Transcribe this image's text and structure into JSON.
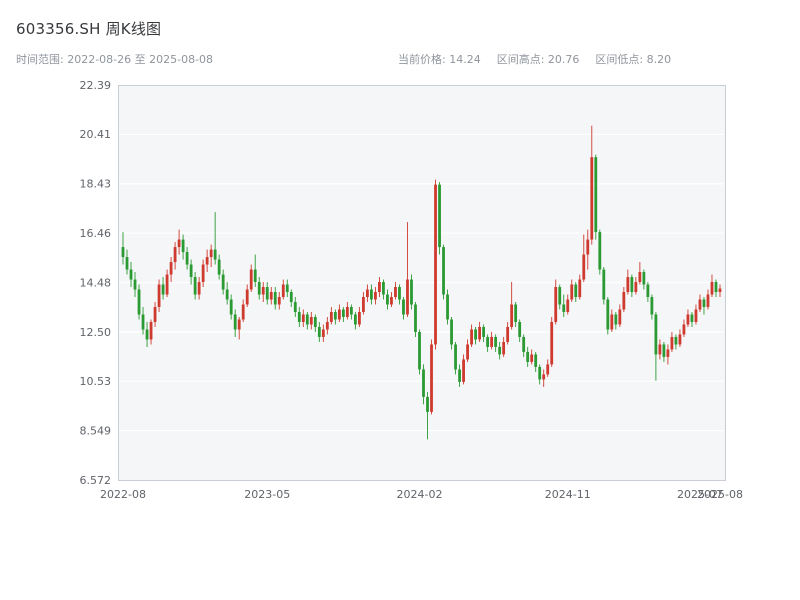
{
  "header": {
    "title": "603356.SH 周K线图",
    "time_range": "时间范围: 2022-08-26 至 2025-08-08",
    "current_price": "当前价格: 14.24",
    "range_high": "区间高点: 20.76",
    "range_low": "区间低点: 8.20"
  },
  "chart_data": {
    "type": "candlestick",
    "title": "603356.SH 周K线图",
    "symbol": "603356.SH",
    "interval": "weekly",
    "current_price": 14.24,
    "range_high": 20.76,
    "range_low": 8.2,
    "ylim": [
      6.572,
      22.39
    ],
    "grid": true,
    "legend": "none",
    "plot_bg": "#f4f6f8",
    "border_color": "#c9ced6",
    "tick_color": "#60646a",
    "up_color": "#cf3a2e",
    "down_color": "#2b9a33",
    "y_ticks": [
      {
        "label": "22.39",
        "value": 22.39
      },
      {
        "label": "20.41",
        "value": 20.41
      },
      {
        "label": "18.43",
        "value": 18.43
      },
      {
        "label": "16.46",
        "value": 16.46
      },
      {
        "label": "14.48",
        "value": 14.48
      },
      {
        "label": "12.50",
        "value": 12.5
      },
      {
        "label": "10.53",
        "value": 10.53
      },
      {
        "label": "8.549",
        "value": 8.549
      },
      {
        "label": "6.572",
        "value": 6.572
      }
    ],
    "x_ticks": [
      {
        "label": "2022-08",
        "index": 0
      },
      {
        "label": "2023-05",
        "index": 36
      },
      {
        "label": "2024-02",
        "index": 74
      },
      {
        "label": "2024-11",
        "index": 111
      },
      {
        "label": "2025-07",
        "index": 144
      },
      {
        "label": "2025-08",
        "index": 149
      }
    ],
    "fields": [
      "date",
      "open",
      "high",
      "low",
      "close"
    ],
    "candles": [
      [
        "2022-08-26",
        15.9,
        16.5,
        15.2,
        15.5
      ],
      [
        "2022-09-02",
        15.5,
        15.8,
        14.8,
        15.0
      ],
      [
        "2022-09-09",
        15.0,
        15.3,
        14.3,
        14.6
      ],
      [
        "2022-09-16",
        14.6,
        14.9,
        13.9,
        14.2
      ],
      [
        "2022-09-23",
        14.2,
        14.4,
        13.0,
        13.2
      ],
      [
        "2022-09-30",
        13.2,
        13.5,
        12.4,
        12.6
      ],
      [
        "2022-10-07",
        12.6,
        12.9,
        11.9,
        12.2
      ],
      [
        "2022-10-14",
        12.2,
        13.0,
        12.0,
        12.9
      ],
      [
        "2022-10-21",
        12.9,
        13.7,
        12.7,
        13.5
      ],
      [
        "2022-10-28",
        13.5,
        14.6,
        13.3,
        14.4
      ],
      [
        "2022-11-04",
        14.4,
        14.7,
        13.8,
        14.0
      ],
      [
        "2022-11-11",
        14.0,
        15.0,
        13.9,
        14.8
      ],
      [
        "2022-11-18",
        14.8,
        15.5,
        14.5,
        15.3
      ],
      [
        "2022-11-25",
        15.3,
        16.1,
        15.0,
        15.9
      ],
      [
        "2022-12-02",
        15.9,
        16.6,
        15.6,
        16.2
      ],
      [
        "2022-12-09",
        16.2,
        16.4,
        15.4,
        15.7
      ],
      [
        "2022-12-16",
        15.7,
        15.9,
        15.0,
        15.2
      ],
      [
        "2022-12-23",
        15.2,
        15.4,
        14.4,
        14.7
      ],
      [
        "2022-12-30",
        14.7,
        14.9,
        13.8,
        14.0
      ],
      [
        "2023-01-06",
        14.0,
        14.7,
        13.8,
        14.5
      ],
      [
        "2023-01-13",
        14.5,
        15.4,
        14.3,
        15.2
      ],
      [
        "2023-01-20",
        15.2,
        15.8,
        14.9,
        15.5
      ],
      [
        "2023-01-27",
        15.5,
        16.0,
        15.1,
        15.8
      ],
      [
        "2023-02-03",
        15.8,
        17.3,
        15.2,
        15.4
      ],
      [
        "2023-02-10",
        15.4,
        15.6,
        14.6,
        14.8
      ],
      [
        "2023-02-17",
        14.8,
        15.0,
        14.0,
        14.2
      ],
      [
        "2023-02-24",
        14.2,
        14.5,
        13.6,
        13.8
      ],
      [
        "2023-03-03",
        13.8,
        14.0,
        13.0,
        13.2
      ],
      [
        "2023-03-10",
        13.2,
        13.4,
        12.3,
        12.6
      ],
      [
        "2023-03-17",
        12.6,
        13.1,
        12.2,
        13.0
      ],
      [
        "2023-03-24",
        13.0,
        13.8,
        12.9,
        13.6
      ],
      [
        "2023-03-31",
        13.6,
        14.4,
        13.5,
        14.2
      ],
      [
        "2023-04-07",
        14.2,
        15.2,
        14.1,
        15.0
      ],
      [
        "2023-04-14",
        15.0,
        15.6,
        14.3,
        14.5
      ],
      [
        "2023-04-21",
        14.5,
        14.7,
        13.8,
        14.0
      ],
      [
        "2023-04-28",
        14.0,
        14.5,
        13.7,
        14.3
      ],
      [
        "2023-05-05",
        14.3,
        14.5,
        13.6,
        13.8
      ],
      [
        "2023-05-12",
        13.8,
        14.3,
        13.6,
        14.1
      ],
      [
        "2023-05-19",
        14.1,
        14.3,
        13.4,
        13.6
      ],
      [
        "2023-05-26",
        13.6,
        14.1,
        13.4,
        13.9
      ],
      [
        "2023-06-02",
        13.9,
        14.6,
        13.8,
        14.4
      ],
      [
        "2023-06-09",
        14.4,
        14.6,
        13.9,
        14.1
      ],
      [
        "2023-06-16",
        14.1,
        14.2,
        13.5,
        13.7
      ],
      [
        "2023-06-23",
        13.7,
        13.9,
        13.1,
        13.3
      ],
      [
        "2023-06-30",
        13.3,
        13.5,
        12.7,
        12.9
      ],
      [
        "2023-07-07",
        12.9,
        13.4,
        12.7,
        13.2
      ],
      [
        "2023-07-14",
        13.2,
        13.3,
        12.6,
        12.8
      ],
      [
        "2023-07-21",
        12.8,
        13.3,
        12.6,
        13.1
      ],
      [
        "2023-07-28",
        13.1,
        13.2,
        12.5,
        12.7
      ],
      [
        "2023-08-04",
        12.7,
        12.9,
        12.1,
        12.3
      ],
      [
        "2023-08-11",
        12.3,
        12.8,
        12.1,
        12.6
      ],
      [
        "2023-08-18",
        12.6,
        13.1,
        12.4,
        12.9
      ],
      [
        "2023-08-25",
        12.9,
        13.5,
        12.8,
        13.3
      ],
      [
        "2023-09-01",
        13.3,
        13.4,
        12.8,
        13.0
      ],
      [
        "2023-09-08",
        13.0,
        13.6,
        12.9,
        13.4
      ],
      [
        "2023-09-15",
        13.4,
        13.5,
        12.9,
        13.1
      ],
      [
        "2023-09-22",
        13.1,
        13.7,
        13.0,
        13.5
      ],
      [
        "2023-09-29",
        13.5,
        13.6,
        13.0,
        13.2
      ],
      [
        "2023-10-13",
        13.2,
        13.3,
        12.6,
        12.8
      ],
      [
        "2023-10-20",
        12.8,
        13.5,
        12.7,
        13.3
      ],
      [
        "2023-10-27",
        13.3,
        14.1,
        13.2,
        13.9
      ],
      [
        "2023-11-03",
        13.9,
        14.4,
        13.7,
        14.2
      ],
      [
        "2023-11-10",
        14.2,
        14.4,
        13.6,
        13.8
      ],
      [
        "2023-11-17",
        13.8,
        14.3,
        13.6,
        14.1
      ],
      [
        "2023-11-24",
        14.1,
        14.7,
        13.9,
        14.5
      ],
      [
        "2023-12-01",
        14.5,
        14.6,
        13.8,
        14.0
      ],
      [
        "2023-12-08",
        14.0,
        14.2,
        13.4,
        13.6
      ],
      [
        "2023-12-15",
        13.6,
        14.1,
        13.5,
        13.9
      ],
      [
        "2023-12-22",
        13.9,
        14.5,
        13.8,
        14.3
      ],
      [
        "2023-12-29",
        14.3,
        14.4,
        13.6,
        13.8
      ],
      [
        "2024-01-05",
        13.8,
        13.9,
        13.0,
        13.2
      ],
      [
        "2024-01-12",
        13.2,
        16.9,
        13.1,
        14.6
      ],
      [
        "2024-01-19",
        14.6,
        14.8,
        13.4,
        13.6
      ],
      [
        "2024-01-26",
        13.6,
        13.7,
        12.3,
        12.5
      ],
      [
        "2024-02-02",
        12.5,
        12.6,
        10.8,
        11.0
      ],
      [
        "2024-02-08",
        11.0,
        11.2,
        9.6,
        9.9
      ],
      [
        "2024-02-23",
        9.9,
        10.1,
        8.2,
        9.3
      ],
      [
        "2024-03-01",
        9.3,
        12.2,
        9.2,
        12.0
      ],
      [
        "2024-03-08",
        12.0,
        18.6,
        11.8,
        18.4
      ],
      [
        "2024-03-15",
        18.4,
        18.5,
        15.6,
        15.9
      ],
      [
        "2024-03-22",
        15.9,
        16.0,
        13.8,
        14.0
      ],
      [
        "2024-03-29",
        14.0,
        14.2,
        12.8,
        13.0
      ],
      [
        "2024-04-05",
        13.0,
        13.1,
        11.8,
        12.0
      ],
      [
        "2024-04-12",
        12.0,
        12.1,
        10.8,
        11.0
      ],
      [
        "2024-04-19",
        11.0,
        11.2,
        10.3,
        10.5
      ],
      [
        "2024-04-26",
        10.5,
        11.6,
        10.4,
        11.4
      ],
      [
        "2024-05-03",
        11.4,
        12.2,
        11.3,
        12.0
      ],
      [
        "2024-05-10",
        12.0,
        12.8,
        11.9,
        12.6
      ],
      [
        "2024-05-17",
        12.6,
        12.7,
        12.0,
        12.2
      ],
      [
        "2024-05-24",
        12.2,
        12.9,
        12.1,
        12.7
      ],
      [
        "2024-05-31",
        12.7,
        12.8,
        12.1,
        12.3
      ],
      [
        "2024-06-07",
        12.3,
        12.4,
        11.7,
        11.9
      ],
      [
        "2024-06-14",
        11.9,
        12.5,
        11.8,
        12.3
      ],
      [
        "2024-06-21",
        12.3,
        12.4,
        11.7,
        11.9
      ],
      [
        "2024-06-28",
        11.9,
        12.1,
        11.4,
        11.6
      ],
      [
        "2024-07-05",
        11.6,
        12.3,
        11.5,
        12.1
      ],
      [
        "2024-07-12",
        12.1,
        12.9,
        12.0,
        12.7
      ],
      [
        "2024-07-19",
        12.7,
        14.5,
        12.6,
        13.6
      ],
      [
        "2024-07-26",
        13.6,
        13.7,
        12.7,
        12.9
      ],
      [
        "2024-08-02",
        12.9,
        13.0,
        12.1,
        12.3
      ],
      [
        "2024-08-09",
        12.3,
        12.4,
        11.5,
        11.7
      ],
      [
        "2024-08-16",
        11.7,
        11.9,
        11.1,
        11.3
      ],
      [
        "2024-08-23",
        11.3,
        11.8,
        11.2,
        11.6
      ],
      [
        "2024-08-30",
        11.6,
        11.7,
        10.9,
        11.1
      ],
      [
        "2024-09-06",
        11.1,
        11.2,
        10.4,
        10.6
      ],
      [
        "2024-09-13",
        10.6,
        11.0,
        10.3,
        10.8
      ],
      [
        "2024-09-20",
        10.8,
        11.4,
        10.7,
        11.2
      ],
      [
        "2024-09-27",
        11.2,
        13.1,
        11.1,
        12.9
      ],
      [
        "2024-10-11",
        12.9,
        14.6,
        12.8,
        14.3
      ],
      [
        "2024-10-18",
        14.3,
        14.4,
        13.4,
        13.6
      ],
      [
        "2024-10-25",
        13.6,
        14.0,
        13.1,
        13.3
      ],
      [
        "2024-11-01",
        13.3,
        14.0,
        13.2,
        13.8
      ],
      [
        "2024-11-08",
        13.8,
        14.6,
        13.7,
        14.4
      ],
      [
        "2024-11-15",
        14.4,
        14.5,
        13.7,
        13.9
      ],
      [
        "2024-11-22",
        13.9,
        14.8,
        13.8,
        14.6
      ],
      [
        "2024-11-29",
        14.6,
        16.4,
        14.5,
        15.6
      ],
      [
        "2024-12-06",
        15.6,
        16.6,
        15.0,
        16.2
      ],
      [
        "2024-12-13",
        16.2,
        20.76,
        16.0,
        19.5
      ],
      [
        "2024-12-20",
        19.5,
        19.6,
        16.2,
        16.5
      ],
      [
        "2024-12-27",
        16.5,
        16.6,
        14.8,
        15.0
      ],
      [
        "2025-01-03",
        15.0,
        15.1,
        13.6,
        13.8
      ],
      [
        "2025-01-10",
        13.8,
        13.9,
        12.4,
        12.6
      ],
      [
        "2025-01-17",
        12.6,
        13.4,
        12.5,
        13.2
      ],
      [
        "2025-01-24",
        13.2,
        13.3,
        12.6,
        12.8
      ],
      [
        "2025-02-07",
        12.8,
        13.6,
        12.7,
        13.4
      ],
      [
        "2025-02-14",
        13.4,
        14.3,
        13.3,
        14.1
      ],
      [
        "2025-02-21",
        14.1,
        15.0,
        14.0,
        14.7
      ],
      [
        "2025-02-28",
        14.7,
        14.8,
        13.9,
        14.1
      ],
      [
        "2025-03-07",
        14.1,
        14.7,
        14.0,
        14.5
      ],
      [
        "2025-03-14",
        14.5,
        15.3,
        14.4,
        14.9
      ],
      [
        "2025-03-21",
        14.9,
        15.0,
        14.2,
        14.4
      ],
      [
        "2025-03-28",
        14.4,
        14.5,
        13.7,
        13.9
      ],
      [
        "2025-04-04",
        13.9,
        14.0,
        13.0,
        13.2
      ],
      [
        "2025-04-11",
        13.2,
        13.3,
        10.55,
        11.6
      ],
      [
        "2025-04-18",
        11.6,
        12.2,
        11.4,
        12.0
      ],
      [
        "2025-04-25",
        12.0,
        12.1,
        11.3,
        11.5
      ],
      [
        "2025-05-09",
        11.5,
        12.0,
        11.2,
        11.8
      ],
      [
        "2025-05-16",
        11.8,
        12.5,
        11.7,
        12.3
      ],
      [
        "2025-05-23",
        12.3,
        12.4,
        11.8,
        12.0
      ],
      [
        "2025-05-30",
        12.0,
        12.6,
        11.9,
        12.4
      ],
      [
        "2025-06-06",
        12.4,
        13.0,
        12.3,
        12.8
      ],
      [
        "2025-06-13",
        12.8,
        13.4,
        12.7,
        13.2
      ],
      [
        "2025-06-20",
        13.2,
        13.3,
        12.7,
        12.9
      ],
      [
        "2025-06-27",
        12.9,
        13.6,
        12.8,
        13.4
      ],
      [
        "2025-07-04",
        13.4,
        14.0,
        13.3,
        13.8
      ],
      [
        "2025-07-11",
        13.8,
        13.9,
        13.2,
        13.5
      ],
      [
        "2025-07-18",
        13.5,
        14.2,
        13.4,
        14.0
      ],
      [
        "2025-07-25",
        14.0,
        14.8,
        13.9,
        14.5
      ],
      [
        "2025-08-01",
        14.5,
        14.6,
        13.9,
        14.1
      ],
      [
        "2025-08-08",
        14.1,
        14.4,
        13.9,
        14.24
      ]
    ]
  }
}
